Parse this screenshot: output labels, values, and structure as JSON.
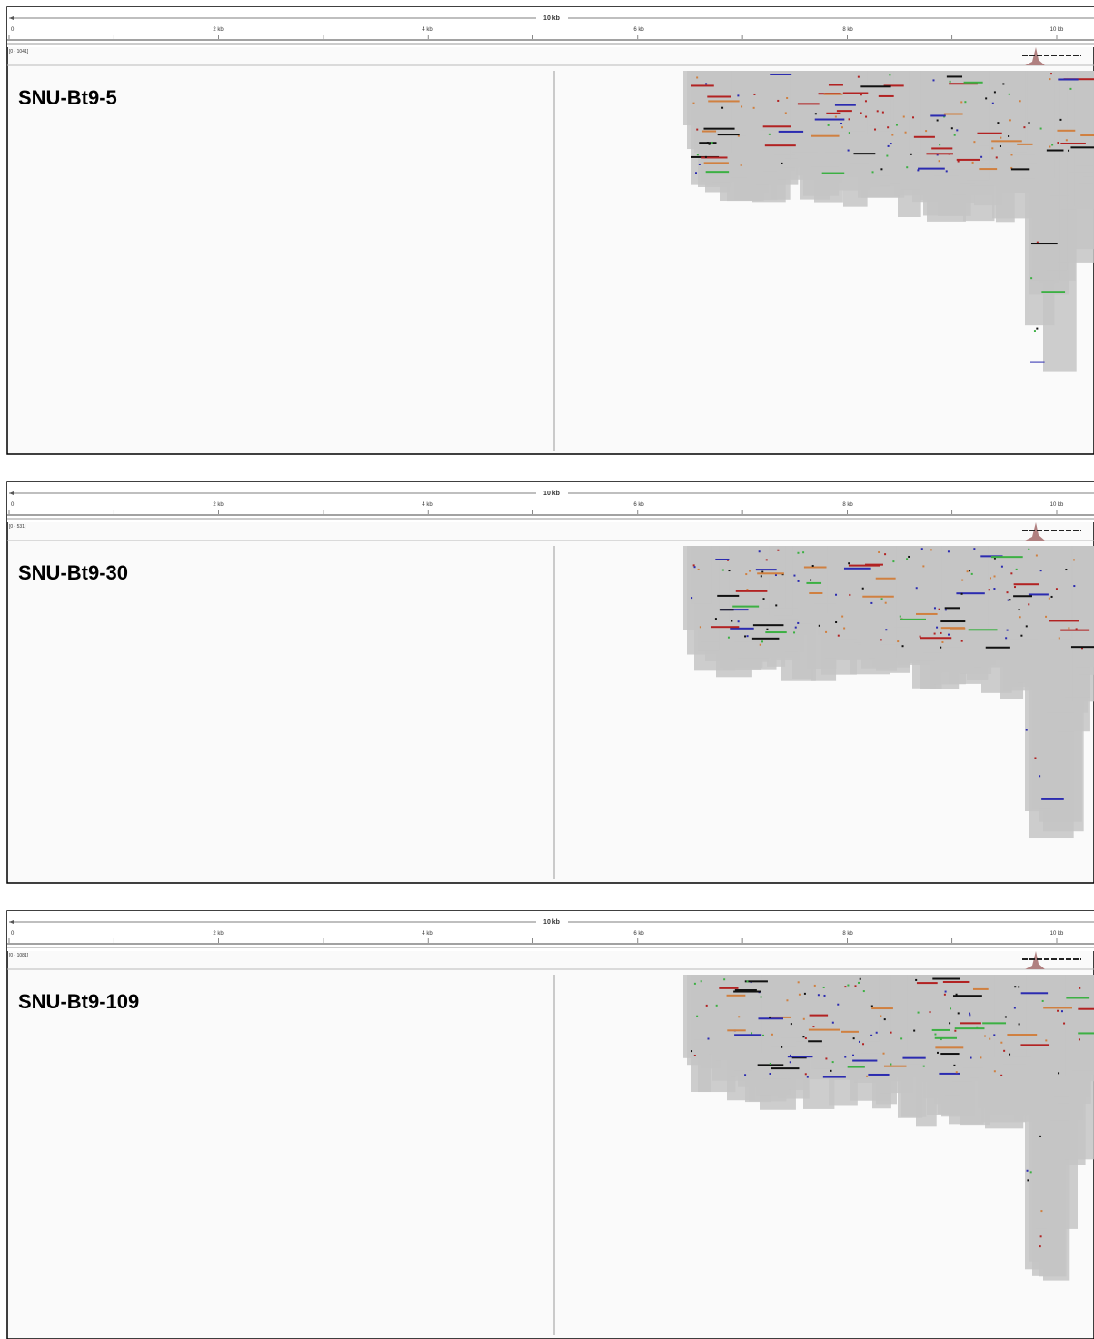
{
  "ruler": {
    "span": "10 kb",
    "ticks": [
      "0",
      "2 kb",
      "4 kb",
      "6 kb",
      "8 kb",
      "10 kb"
    ]
  },
  "panels": [
    {
      "sample": "SNU-Bt9-5",
      "range": "[0 - 1041]"
    },
    {
      "sample": "SNU-Bt9-30",
      "range": "[0 - 531]"
    },
    {
      "sample": "SNU-Bt9-109",
      "range": "[0 - 1081]"
    }
  ]
}
